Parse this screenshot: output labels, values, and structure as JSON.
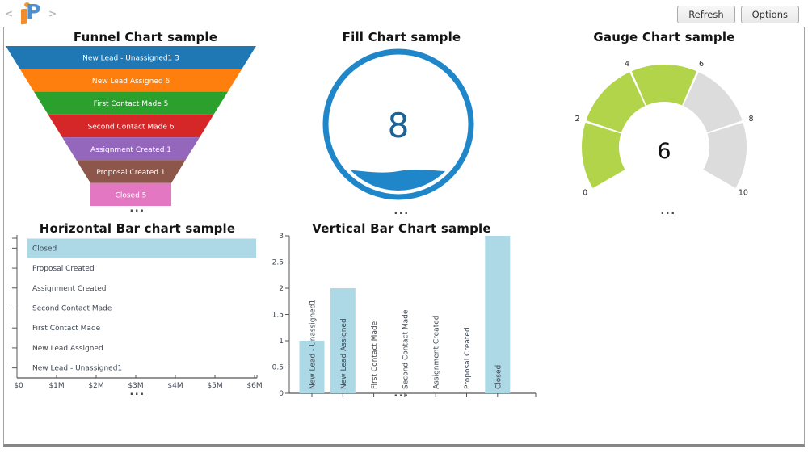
{
  "header": {
    "logo": {
      "left_chevron": "<",
      "right_chevron": ">",
      "letter": "P"
    },
    "buttons": [
      {
        "label": "Refresh"
      },
      {
        "label": "Options"
      }
    ]
  },
  "charts": {
    "funnel": {
      "title": "Funnel Chart sample",
      "more": "...",
      "segments": [
        {
          "label": "New Lead - Unassigned1",
          "value": 3,
          "color": "#1f77b4"
        },
        {
          "label": "New Lead Assigned",
          "value": 6,
          "color": "#ff7f0e"
        },
        {
          "label": "First Contact Made",
          "value": 5,
          "color": "#2ca02c"
        },
        {
          "label": "Second Contact Made",
          "value": 6,
          "color": "#d62728"
        },
        {
          "label": "Assignment Created",
          "value": 1,
          "color": "#9467bd"
        },
        {
          "label": "Proposal Created",
          "value": 1,
          "color": "#8c564b"
        },
        {
          "label": "Closed",
          "value": 5,
          "color": "#e377c2"
        }
      ]
    },
    "fill": {
      "title": "Fill Chart sample",
      "value": "8",
      "ring_color": "#1f87c9",
      "value_color": "#1a6396",
      "more": "..."
    },
    "gauge": {
      "title": "Gauge Chart sample",
      "value": 6,
      "min": 0,
      "max": 10,
      "tick_labels": [
        "0",
        "2",
        "4",
        "6",
        "8",
        "10"
      ],
      "active_color": "#b2d44a",
      "inactive_color": "#dcdcdc",
      "more": "..."
    },
    "hbar": {
      "title": "Horizontal Bar chart sample",
      "bar_color": "#add8e6",
      "max_value": 6000000,
      "x_tick_labels": [
        "$0",
        "$1M",
        "$2M",
        "$3M",
        "$4M",
        "$5M",
        "$6M"
      ],
      "rows": [
        {
          "label": "Closed",
          "value": 6000000
        },
        {
          "label": "Proposal Created",
          "value": 0
        },
        {
          "label": "Assignment Created",
          "value": 0
        },
        {
          "label": "Second Contact Made",
          "value": 0
        },
        {
          "label": "First Contact Made",
          "value": 0
        },
        {
          "label": "New Lead Assigned",
          "value": 0
        },
        {
          "label": "New Lead - Unassigned1",
          "value": 0
        }
      ],
      "more": "..."
    },
    "vbar": {
      "title": "Vertical Bar Chart sample",
      "bar_color": "#add8e6",
      "y_max": 3,
      "y_tick_labels": [
        "0",
        "0.5",
        "1",
        "1.5",
        "2",
        "2.5",
        "3"
      ],
      "bars": [
        {
          "label": "New Lead - Unassigned1",
          "value": 1
        },
        {
          "label": "New Lead Assigned",
          "value": 2
        },
        {
          "label": "First Contact Made",
          "value": 0
        },
        {
          "label": "Second Contact Made",
          "value": 0
        },
        {
          "label": "Assignment Created",
          "value": 0
        },
        {
          "label": "Proposal Created",
          "value": 0
        },
        {
          "label": "Closed",
          "value": 3
        }
      ],
      "more": "..."
    }
  },
  "chart_data": [
    {
      "type": "funnel",
      "title": "Funnel Chart sample",
      "categories": [
        "New Lead - Unassigned1",
        "New Lead Assigned",
        "First Contact Made",
        "Second Contact Made",
        "Assignment Created",
        "Proposal Created",
        "Closed"
      ],
      "values": [
        3,
        6,
        5,
        6,
        1,
        1,
        5
      ],
      "colors": [
        "#1f77b4",
        "#ff7f0e",
        "#2ca02c",
        "#d62728",
        "#9467bd",
        "#8c564b",
        "#e377c2"
      ]
    },
    {
      "type": "fill",
      "title": "Fill Chart sample",
      "value": 8,
      "fill_fraction": 0.2,
      "color": "#1f87c9"
    },
    {
      "type": "gauge",
      "title": "Gauge Chart sample",
      "value": 6,
      "min": 0,
      "max": 10,
      "tick_labels": [
        0,
        2,
        4,
        6,
        8,
        10
      ],
      "segments": 5,
      "active_color": "#b2d44a",
      "inactive_color": "#dcdcdc"
    },
    {
      "type": "bar",
      "orientation": "horizontal",
      "title": "Horizontal Bar chart sample",
      "categories": [
        "Closed",
        "Proposal Created",
        "Assignment Created",
        "Second Contact Made",
        "First Contact Made",
        "New Lead Assigned",
        "New Lead - Unassigned1"
      ],
      "values": [
        6000000,
        0,
        0,
        0,
        0,
        0,
        0
      ],
      "x_ticks": [
        "$0",
        "$1M",
        "$2M",
        "$3M",
        "$4M",
        "$5M",
        "$6M"
      ],
      "xlim": [
        0,
        6000000
      ],
      "grid": false,
      "legend": "none"
    },
    {
      "type": "bar",
      "orientation": "vertical",
      "title": "Vertical Bar Chart sample",
      "categories": [
        "New Lead - Unassigned1",
        "New Lead Assigned",
        "First Contact Made",
        "Second Contact Made",
        "Assignment Created",
        "Proposal Created",
        "Closed"
      ],
      "values": [
        1,
        2,
        0,
        0,
        0,
        0,
        3
      ],
      "y_ticks": [
        0,
        0.5,
        1,
        1.5,
        2,
        2.5,
        3
      ],
      "ylim": [
        0,
        3
      ],
      "grid": false,
      "legend": "none"
    }
  ]
}
